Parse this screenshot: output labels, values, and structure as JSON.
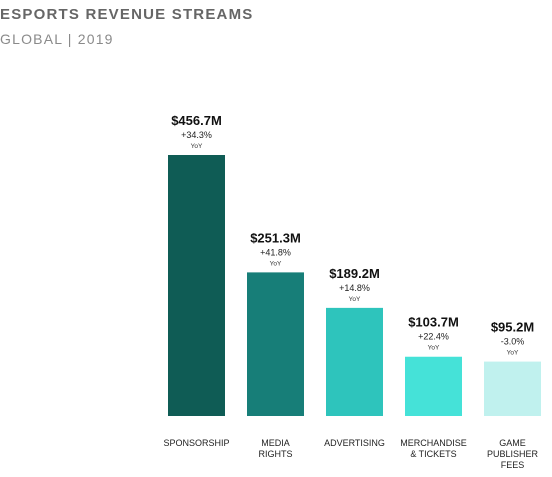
{
  "header": {
    "title": "ESPORTS REVENUE STREAMS",
    "subtitle": "GLOBAL | 2019"
  },
  "chart_data": {
    "type": "bar",
    "title": "ESPORTS REVENUE STREAMS",
    "subtitle": "GLOBAL | 2019",
    "categories": [
      "SPONSORSHIP",
      "MEDIA RIGHTS",
      "ADVERTISING",
      "MERCHANDISE & TICKETS",
      "GAME PUBLISHER FEES"
    ],
    "category_lines": [
      [
        "SPONSORSHIP"
      ],
      [
        "MEDIA",
        "RIGHTS"
      ],
      [
        "ADVERTISING"
      ],
      [
        "MERCHANDISE",
        "& TICKETS"
      ],
      [
        "GAME",
        "PUBLISHER",
        "FEES"
      ]
    ],
    "values": [
      456.7,
      251.3,
      189.2,
      103.7,
      95.2
    ],
    "value_labels": [
      "$456.7M",
      "$251.3M",
      "$189.2M",
      "$103.7M",
      "$95.2M"
    ],
    "change_labels": [
      "+34.3%",
      "+41.8%",
      "+14.8%",
      "+22.4%",
      "-3.0%"
    ],
    "change_unit": "YoY",
    "unit": "$M",
    "colors": [
      "#0f5c55",
      "#177e78",
      "#2ec4bc",
      "#45e2d8",
      "#c0f1ee"
    ],
    "ylim": [
      0,
      456.7
    ],
    "grid": false,
    "legend": "none"
  }
}
